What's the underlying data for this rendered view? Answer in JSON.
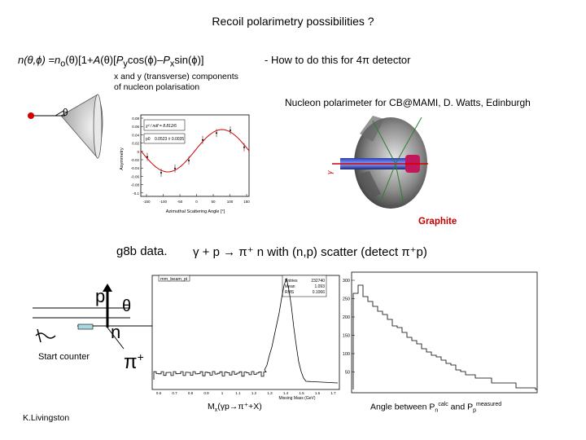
{
  "title": "Recoil polarimetry possibilities ?",
  "formula": {
    "lhs": "n(θ,ϕ) =n",
    "sub0": "o",
    "mid": "(θ)[1+",
    "A": "A",
    "mid2": "(θ)[",
    "P1": "P",
    "sub1": "y",
    "cos": "cos(ϕ)–",
    "P2": "P",
    "sub2": "x",
    "sin": "sin(ϕ)]"
  },
  "howto": "- How to do this for 4π detector",
  "xy_note": [
    "x and y (transverse) components",
    "of nucleon polarisation"
  ],
  "nucleon_polarimeter": "Nucleon polarimeter for CB@MAMI, D. Watts, Edinburgh",
  "graphite": "Graphite",
  "g8b": "g8b data.",
  "reaction": "γ + p → π⁺ n with (n,p) scatter (detect π⁺p)",
  "start_counter": "Start counter",
  "k_livingston": "K.Livingston",
  "diagram": {
    "p": "p",
    "n": "n",
    "theta": "θ",
    "pi": "π",
    "pi_sup": "+"
  },
  "mx_label": {
    "pre": "M",
    "sub": "x",
    "post": "(γp→π⁺+X)"
  },
  "angle_label": {
    "pre": "Angle between P",
    "sub1": "n",
    "sup1": "calc",
    "mid": " and P",
    "sub2": "p",
    "sup2": "measured"
  },
  "asym_plot": {
    "ylabel": "Asymmetry",
    "xlabel": "Azimuthal Scattering Angle [°]",
    "stat1": "χ² / ndf = 8.812/6",
    "stat2": "p0",
    "stat2v": "0.0523 ± 0.0035",
    "xticks": [
      "-150",
      "-100",
      "-50",
      "0",
      "50",
      "100",
      "150"
    ],
    "yticks": [
      "0.08",
      "0.06",
      "0.04",
      "0.02",
      "0",
      "-0.02",
      "-0.04",
      "-0.06",
      "-0.08",
      "-0.1"
    ]
  },
  "hist_plot": {
    "title": "mm_beam_pi",
    "stat_rows": [
      [
        "Entries",
        "232740"
      ],
      [
        "Mean",
        "1.093"
      ],
      [
        "RMS",
        "0.1066"
      ]
    ],
    "xlabel": "Missing Mass (GeV)",
    "xticks": [
      "0.6",
      "0.7",
      "0.8",
      "0.9",
      "1",
      "1.1",
      "1.2",
      "1.3",
      "1.4",
      "1.5",
      "1.6",
      "1.7"
    ]
  },
  "angle_plot": {
    "yticks": [
      "300",
      "250",
      "200",
      "150",
      "100",
      "50"
    ]
  },
  "colors": {
    "accent": "#c00000",
    "plot_curve": "#d00000",
    "beam": "#d00000"
  }
}
